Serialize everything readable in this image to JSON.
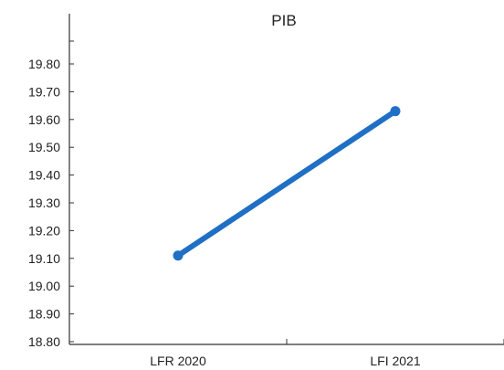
{
  "chart_data": {
    "type": "line",
    "title": "PIB",
    "categories": [
      "LFR 2020",
      "LFI 2021"
    ],
    "series": [
      {
        "values": [
          19.11,
          19.63
        ],
        "color": "#1f6fc5"
      }
    ],
    "ylim": [
      18.8,
      19.8
    ],
    "yticks": [
      "19.80",
      "19.70",
      "19.60",
      "19.50",
      "19.40",
      "19.30",
      "19.20",
      "19.10",
      "19.00",
      "18.90",
      "18.80"
    ],
    "xlabel": "",
    "ylabel": "",
    "grid": false,
    "legend": "none"
  }
}
